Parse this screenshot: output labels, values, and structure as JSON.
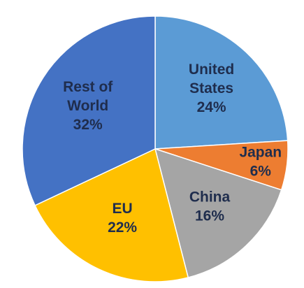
{
  "chart_data": {
    "type": "pie",
    "title": "",
    "slices": [
      {
        "label_lines": [
          "United",
          "States"
        ],
        "value": 24,
        "value_label": "24%",
        "color": "#5B9BD5",
        "text_color": "#1F2D4D"
      },
      {
        "label_lines": [
          "Japan"
        ],
        "value": 6,
        "value_label": "6%",
        "color": "#ED7D31",
        "text_color": "#1F2D4D"
      },
      {
        "label_lines": [
          "China"
        ],
        "value": 16,
        "value_label": "16%",
        "color": "#A5A5A5",
        "text_color": "#1F2D4D"
      },
      {
        "label_lines": [
          "EU"
        ],
        "value": 22,
        "value_label": "22%",
        "color": "#FFC000",
        "text_color": "#1F2D4D"
      },
      {
        "label_lines": [
          "Rest of",
          "World"
        ],
        "value": 32,
        "value_label": "32%",
        "color": "#4472C4",
        "text_color": "#1F2D4D"
      }
    ],
    "start_angle": "12 o'clock",
    "direction": "clockwise",
    "legend": "none"
  }
}
